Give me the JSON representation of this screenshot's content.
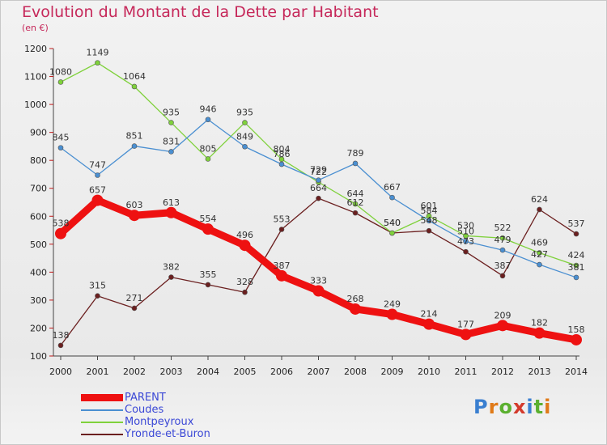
{
  "title": "Evolution du Montant de la Dette par Habitant",
  "subtitle": "(en €)",
  "logo": "Proxiti",
  "chart_data": {
    "type": "line",
    "x": [
      "2000",
      "2001",
      "2002",
      "2003",
      "2004",
      "2005",
      "2006",
      "2007",
      "2008",
      "2009",
      "2010",
      "2011",
      "2012",
      "2013",
      "2014"
    ],
    "ylim": [
      100,
      1200
    ],
    "yticks": [
      100,
      200,
      300,
      400,
      500,
      600,
      700,
      800,
      900,
      1000,
      1100,
      1200
    ],
    "grid": false,
    "legend_position": "bottom-left",
    "series": [
      {
        "name": "PARENT",
        "color": "#ee1111",
        "values": [
          538,
          657,
          603,
          613,
          554,
          496,
          387,
          333,
          268,
          249,
          214,
          177,
          209,
          182,
          158
        ],
        "labels": [
          "538",
          "657",
          "603",
          "613",
          "554",
          "496",
          "387",
          "333",
          "268",
          "249",
          "214",
          "177",
          "209",
          "182",
          "158"
        ]
      },
      {
        "name": "Coudes",
        "color": "#4a8fd1",
        "values": [
          845,
          747,
          851,
          831,
          946,
          849,
          786,
          729,
          789,
          667,
          584,
          510,
          479,
          427,
          381
        ],
        "labels": [
          "845",
          "747",
          "851",
          "831",
          "946",
          "849",
          "786",
          "729",
          "789",
          "667",
          "584",
          "510",
          "479",
          "427",
          "381"
        ]
      },
      {
        "name": "Montpeyroux",
        "color": "#7fd13b",
        "values": [
          1080,
          1149,
          1064,
          935,
          805,
          935,
          804,
          722,
          644,
          540,
          601,
          530,
          522,
          469,
          424
        ],
        "labels": [
          "1080",
          "1149",
          "1064",
          "935",
          "805",
          "935",
          "804",
          "722",
          "644",
          "540",
          "601",
          "530",
          "522",
          "469",
          "424"
        ]
      },
      {
        "name": "Yronde-et-Buron",
        "color": "#6b1f1f",
        "values": [
          138,
          315,
          271,
          382,
          355,
          328,
          553,
          664,
          612,
          540,
          548,
          473,
          387,
          624,
          537
        ],
        "labels": [
          "138",
          "315",
          "271",
          "382",
          "355",
          "328",
          "553",
          "664",
          "612",
          "540",
          "548",
          "473",
          "387",
          "624",
          "537"
        ]
      }
    ]
  }
}
